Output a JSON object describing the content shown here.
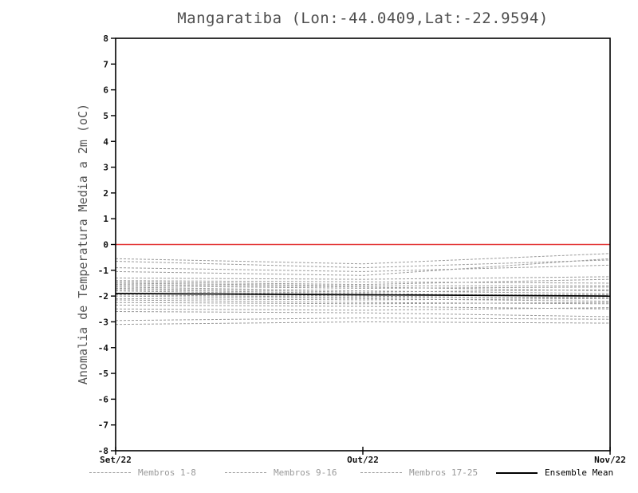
{
  "chart_data": {
    "type": "line",
    "title": "Mangaratiba (Lon:-44.0409,Lat:-22.9594)",
    "ylabel": "Anomalia de Temperatura Media a 2m (oC)",
    "xlabel": "",
    "x_categories": [
      "Set/22",
      "Out/22",
      "Nov/22"
    ],
    "ylim": [
      -8,
      8
    ],
    "ytick_step": 1,
    "grid": false,
    "legend_position": "bottom",
    "zero_line": {
      "y": 0,
      "color": "#e43a3a"
    },
    "members_color": "#9a9a9a",
    "mean_color": "#000000",
    "members": [
      [
        -0.55,
        -0.75,
        -0.35
      ],
      [
        -0.65,
        -0.9,
        -0.6
      ],
      [
        -0.9,
        -1.05,
        -0.8
      ],
      [
        -1.05,
        -1.2,
        -0.55
      ],
      [
        -1.3,
        -1.35,
        -1.25
      ],
      [
        -1.4,
        -1.45,
        -1.5
      ],
      [
        -1.45,
        -1.55,
        -1.35
      ],
      [
        -1.5,
        -1.6,
        -1.6
      ],
      [
        -1.55,
        -1.65,
        -1.8
      ],
      [
        -1.6,
        -1.7,
        -1.65
      ],
      [
        -1.65,
        -1.8,
        -1.9
      ],
      [
        -1.7,
        -1.85,
        -1.75
      ],
      [
        -1.75,
        -1.9,
        -2.0
      ],
      [
        -1.8,
        -1.95,
        -1.95
      ],
      [
        -1.9,
        -2.0,
        -2.1
      ],
      [
        -1.95,
        -2.05,
        -2.05
      ],
      [
        -2.0,
        -2.1,
        -2.2
      ],
      [
        -2.1,
        -2.15,
        -2.1
      ],
      [
        -2.15,
        -2.25,
        -2.3
      ],
      [
        -2.25,
        -2.3,
        -2.25
      ],
      [
        -2.35,
        -2.4,
        -2.5
      ],
      [
        -2.5,
        -2.55,
        -2.45
      ],
      [
        -2.6,
        -2.65,
        -2.8
      ],
      [
        -2.95,
        -2.85,
        -2.9
      ],
      [
        -3.1,
        -3.0,
        -3.05
      ]
    ],
    "mean": [
      -1.9,
      -1.95,
      -2.0
    ],
    "legend": [
      {
        "label": "Membros 1-8",
        "style": "dashed",
        "color": "#9a9a9a"
      },
      {
        "label": "Membros 9-16",
        "style": "dashed",
        "color": "#9a9a9a"
      },
      {
        "label": "Membros 17-25",
        "style": "dashed",
        "color": "#9a9a9a"
      },
      {
        "label": "Ensemble Mean",
        "style": "solid",
        "color": "#000000"
      }
    ]
  }
}
